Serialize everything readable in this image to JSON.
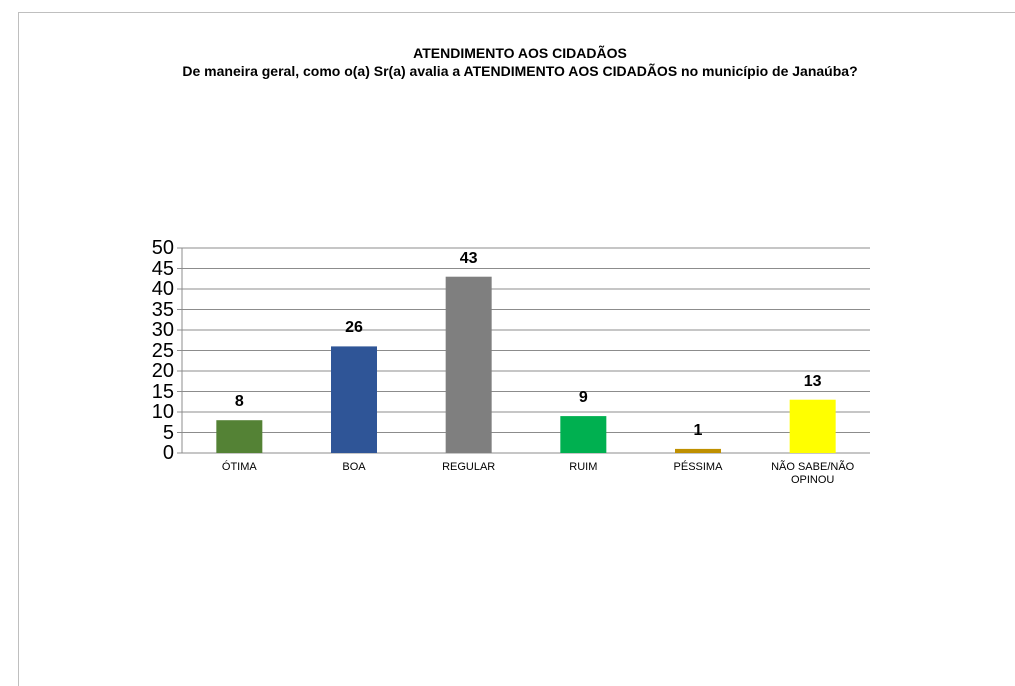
{
  "chart_data": {
    "type": "bar",
    "title": "ATENDIMENTO AOS CIDADÃOS",
    "subtitle": "De maneira geral, como o(a) Sr(a) avalia a ATENDIMENTO AOS CIDADÃOS no município de Janaúba?",
    "categories": [
      "ÓTIMA",
      "BOA",
      "REGULAR",
      "RUIM",
      "PÉSSIMA",
      "NÃO SABE/NÃO OPINOU"
    ],
    "values": [
      8,
      26,
      43,
      9,
      1,
      13
    ],
    "colors": [
      "#548235",
      "#2f5597",
      "#7f7f7f",
      "#00b050",
      "#bf9000",
      "#ffff00"
    ],
    "ylim": [
      0,
      50
    ],
    "yticks": [
      0,
      5,
      10,
      15,
      20,
      25,
      30,
      35,
      40,
      45,
      50
    ],
    "grid": true
  }
}
